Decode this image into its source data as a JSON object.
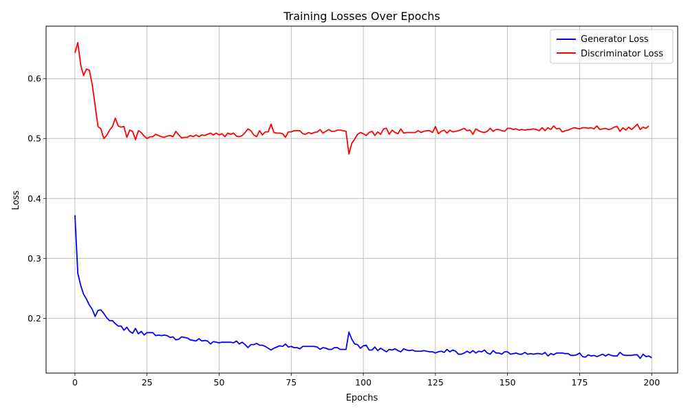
{
  "chart_data": {
    "type": "line",
    "title": "Training Losses Over Epochs",
    "xlabel": "Epochs",
    "ylabel": "Loss",
    "xlim": [
      -10,
      209
    ],
    "ylim": [
      0.1085,
      0.6875
    ],
    "xticks": [
      0,
      25,
      50,
      75,
      100,
      125,
      150,
      175,
      200
    ],
    "yticks": [
      0.2,
      0.3,
      0.4,
      0.5,
      0.6
    ],
    "ytick_labels": [
      "0.2",
      "0.3",
      "0.4",
      "0.5",
      "0.6"
    ],
    "grid": true,
    "legend_position": "top-right",
    "series": [
      {
        "name": "Generator Loss",
        "color": "#0000ff",
        "x_start": 0,
        "x_step": 1,
        "values": [
          0.372,
          0.275,
          0.255,
          0.24,
          0.232,
          0.222,
          0.215,
          0.203,
          0.213,
          0.214,
          0.208,
          0.201,
          0.196,
          0.196,
          0.191,
          0.187,
          0.187,
          0.18,
          0.185,
          0.178,
          0.175,
          0.183,
          0.174,
          0.178,
          0.172,
          0.176,
          0.176,
          0.176,
          0.171,
          0.172,
          0.171,
          0.172,
          0.171,
          0.168,
          0.169,
          0.164,
          0.165,
          0.169,
          0.168,
          0.167,
          0.164,
          0.163,
          0.162,
          0.166,
          0.162,
          0.163,
          0.162,
          0.157,
          0.161,
          0.16,
          0.159,
          0.16,
          0.16,
          0.16,
          0.16,
          0.159,
          0.162,
          0.157,
          0.16,
          0.156,
          0.151,
          0.156,
          0.156,
          0.158,
          0.155,
          0.155,
          0.153,
          0.15,
          0.147,
          0.15,
          0.152,
          0.154,
          0.153,
          0.157,
          0.152,
          0.153,
          0.151,
          0.151,
          0.149,
          0.153,
          0.153,
          0.153,
          0.153,
          0.153,
          0.152,
          0.148,
          0.151,
          0.15,
          0.148,
          0.148,
          0.151,
          0.151,
          0.148,
          0.148,
          0.148,
          0.177,
          0.165,
          0.157,
          0.156,
          0.15,
          0.154,
          0.155,
          0.147,
          0.147,
          0.152,
          0.146,
          0.15,
          0.147,
          0.144,
          0.148,
          0.147,
          0.149,
          0.146,
          0.144,
          0.149,
          0.147,
          0.146,
          0.147,
          0.145,
          0.145,
          0.145,
          0.146,
          0.145,
          0.144,
          0.144,
          0.142,
          0.144,
          0.145,
          0.143,
          0.148,
          0.144,
          0.147,
          0.145,
          0.14,
          0.14,
          0.142,
          0.145,
          0.142,
          0.146,
          0.142,
          0.145,
          0.144,
          0.147,
          0.142,
          0.14,
          0.146,
          0.142,
          0.142,
          0.14,
          0.144,
          0.144,
          0.14,
          0.141,
          0.142,
          0.14,
          0.14,
          0.143,
          0.14,
          0.141,
          0.14,
          0.141,
          0.141,
          0.14,
          0.143,
          0.137,
          0.141,
          0.139,
          0.142,
          0.142,
          0.142,
          0.141,
          0.141,
          0.138,
          0.138,
          0.139,
          0.142,
          0.136,
          0.135,
          0.139,
          0.137,
          0.138,
          0.136,
          0.138,
          0.14,
          0.137,
          0.14,
          0.138,
          0.137,
          0.137,
          0.143,
          0.139,
          0.138,
          0.138,
          0.138,
          0.139,
          0.139,
          0.133,
          0.14,
          0.136,
          0.137,
          0.134
        ]
      },
      {
        "name": "Discriminator Loss",
        "color": "#ff0000",
        "x_start": 0,
        "x_step": 1,
        "values": [
          0.643,
          0.66,
          0.623,
          0.605,
          0.616,
          0.614,
          0.59,
          0.555,
          0.52,
          0.516,
          0.5,
          0.505,
          0.514,
          0.52,
          0.534,
          0.521,
          0.519,
          0.52,
          0.502,
          0.514,
          0.512,
          0.498,
          0.513,
          0.51,
          0.504,
          0.5,
          0.503,
          0.503,
          0.507,
          0.505,
          0.503,
          0.502,
          0.504,
          0.505,
          0.503,
          0.512,
          0.506,
          0.501,
          0.502,
          0.502,
          0.505,
          0.503,
          0.506,
          0.503,
          0.506,
          0.505,
          0.507,
          0.509,
          0.506,
          0.509,
          0.506,
          0.508,
          0.503,
          0.509,
          0.507,
          0.509,
          0.504,
          0.503,
          0.505,
          0.51,
          0.516,
          0.513,
          0.506,
          0.503,
          0.513,
          0.506,
          0.511,
          0.511,
          0.524,
          0.51,
          0.509,
          0.509,
          0.508,
          0.502,
          0.511,
          0.511,
          0.513,
          0.513,
          0.513,
          0.508,
          0.507,
          0.51,
          0.508,
          0.51,
          0.511,
          0.515,
          0.509,
          0.512,
          0.515,
          0.512,
          0.512,
          0.514,
          0.514,
          0.513,
          0.512,
          0.474,
          0.492,
          0.499,
          0.507,
          0.51,
          0.508,
          0.505,
          0.51,
          0.512,
          0.505,
          0.511,
          0.507,
          0.516,
          0.517,
          0.507,
          0.514,
          0.51,
          0.508,
          0.516,
          0.509,
          0.51,
          0.51,
          0.51,
          0.51,
          0.513,
          0.51,
          0.512,
          0.513,
          0.513,
          0.51,
          0.52,
          0.508,
          0.512,
          0.514,
          0.509,
          0.514,
          0.511,
          0.512,
          0.513,
          0.515,
          0.517,
          0.513,
          0.514,
          0.507,
          0.516,
          0.513,
          0.511,
          0.51,
          0.512,
          0.517,
          0.512,
          0.515,
          0.515,
          0.513,
          0.512,
          0.517,
          0.517,
          0.515,
          0.516,
          0.514,
          0.515,
          0.514,
          0.515,
          0.515,
          0.516,
          0.515,
          0.513,
          0.518,
          0.513,
          0.518,
          0.515,
          0.521,
          0.516,
          0.517,
          0.511,
          0.513,
          0.514,
          0.516,
          0.518,
          0.517,
          0.516,
          0.518,
          0.518,
          0.517,
          0.518,
          0.516,
          0.521,
          0.515,
          0.516,
          0.517,
          0.515,
          0.516,
          0.519,
          0.52,
          0.512,
          0.518,
          0.514,
          0.519,
          0.515,
          0.519,
          0.524,
          0.515,
          0.519,
          0.517,
          0.521
        ]
      }
    ]
  }
}
